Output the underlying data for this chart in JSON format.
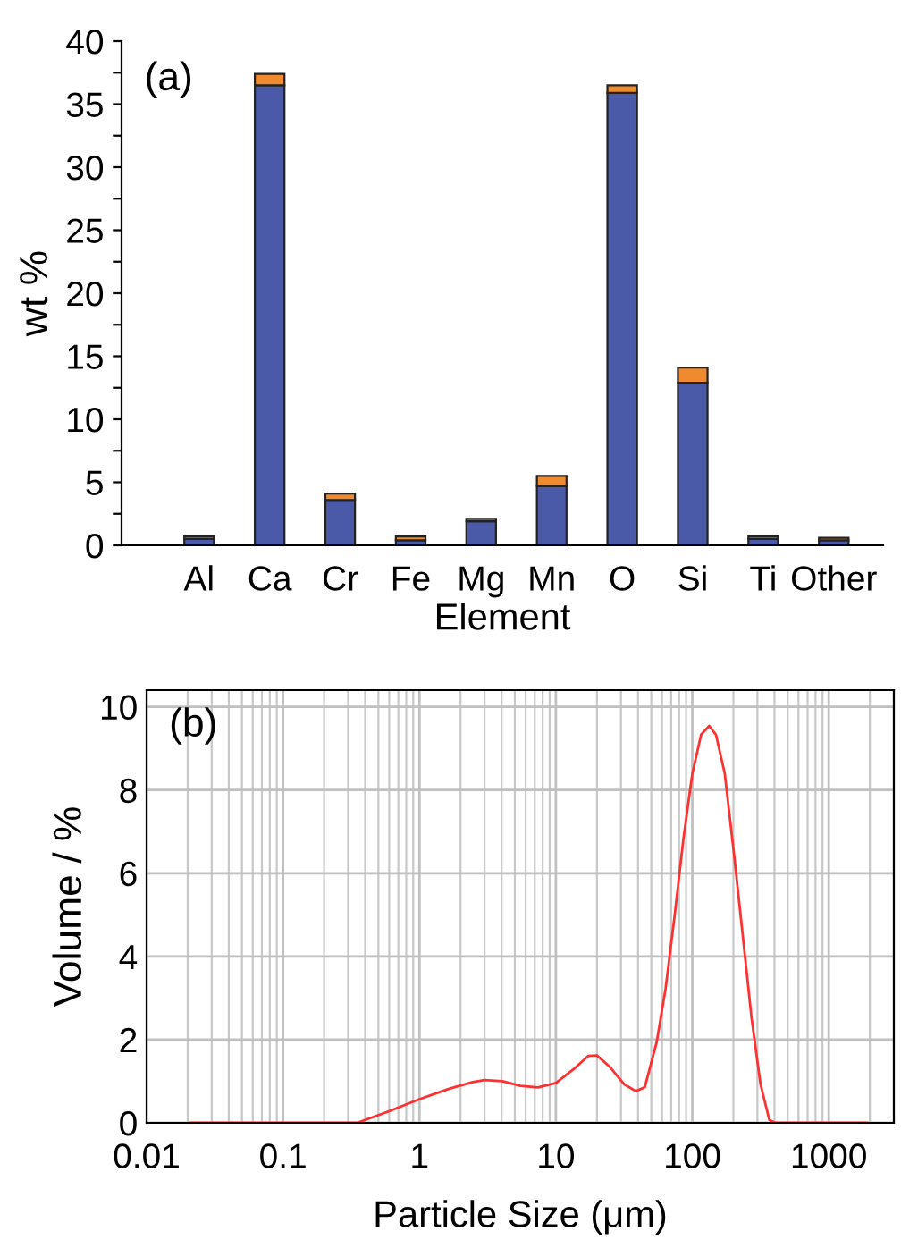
{
  "chart_data": [
    {
      "type": "bar",
      "stacked": true,
      "xlabel": "Element",
      "ylabel": "wt %",
      "annotations": [
        "(a)"
      ],
      "categories": [
        "Al",
        "Ca",
        "Cr",
        "Fe",
        "Mg",
        "Mn",
        "O",
        "Si",
        "Ti",
        "Other"
      ],
      "ylim": [
        0,
        40
      ],
      "yticks": [
        0,
        {
          "value": 2.5,
          "label": null
        },
        5,
        {
          "value": 7.5,
          "label": null
        },
        10,
        {
          "value": 12.5,
          "label": null
        },
        15,
        {
          "value": 17.5,
          "label": null
        },
        20,
        {
          "value": 22.5,
          "label": null
        },
        25,
        {
          "value": 27.5,
          "label": null
        },
        30,
        {
          "value": 32.5,
          "label": null
        },
        35,
        {
          "value": 37.5,
          "label": null
        },
        40
      ],
      "grid": false,
      "series": [
        {
          "color": "#4a5aa8",
          "values": [
            0.5,
            36.5,
            3.6,
            0.4,
            1.9,
            4.7,
            35.9,
            12.9,
            0.5,
            0.4
          ]
        },
        {
          "color": "#f08a2e",
          "values": [
            0.2,
            0.9,
            0.5,
            0.3,
            0.2,
            0.8,
            0.6,
            1.2,
            0.2,
            0.2
          ]
        }
      ]
    },
    {
      "type": "line",
      "xlabel": "Particle Size (μm)",
      "ylabel": "Volume / %",
      "annotations": [
        "(b)"
      ],
      "log": "x",
      "xlim": [
        0.01,
        3000
      ],
      "xticks": [
        0.01,
        0.1,
        1,
        10,
        100,
        1000
      ],
      "ylim": [
        0,
        10.4
      ],
      "yticks": [
        0,
        2,
        4,
        6,
        8,
        10
      ],
      "grid": true,
      "line_style": "solid",
      "marker": "none",
      "series": [
        {
          "color": "#ff3030",
          "x": [
            0.021,
            0.35,
            0.61,
            1.0,
            1.65,
            2.46,
            3.0,
            4.06,
            5.5,
            7.4,
            10,
            13.5,
            17.3,
            20,
            24.6,
            31.6,
            38.6,
            44.9,
            54.8,
            63.7,
            74,
            86,
            100,
            116,
            133,
            149,
            173,
            201,
            234,
            272,
            316,
            367,
            406,
            1910
          ],
          "values": [
            0,
            0,
            0.29,
            0.57,
            0.82,
            0.98,
            1.03,
            1.0,
            0.89,
            0.85,
            0.96,
            1.29,
            1.61,
            1.62,
            1.36,
            0.93,
            0.76,
            0.86,
            1.94,
            3.23,
            4.95,
            6.82,
            8.39,
            9.33,
            9.54,
            9.33,
            8.39,
            6.53,
            4.52,
            2.51,
            0.93,
            0.07,
            0,
            0
          ]
        }
      ]
    }
  ]
}
